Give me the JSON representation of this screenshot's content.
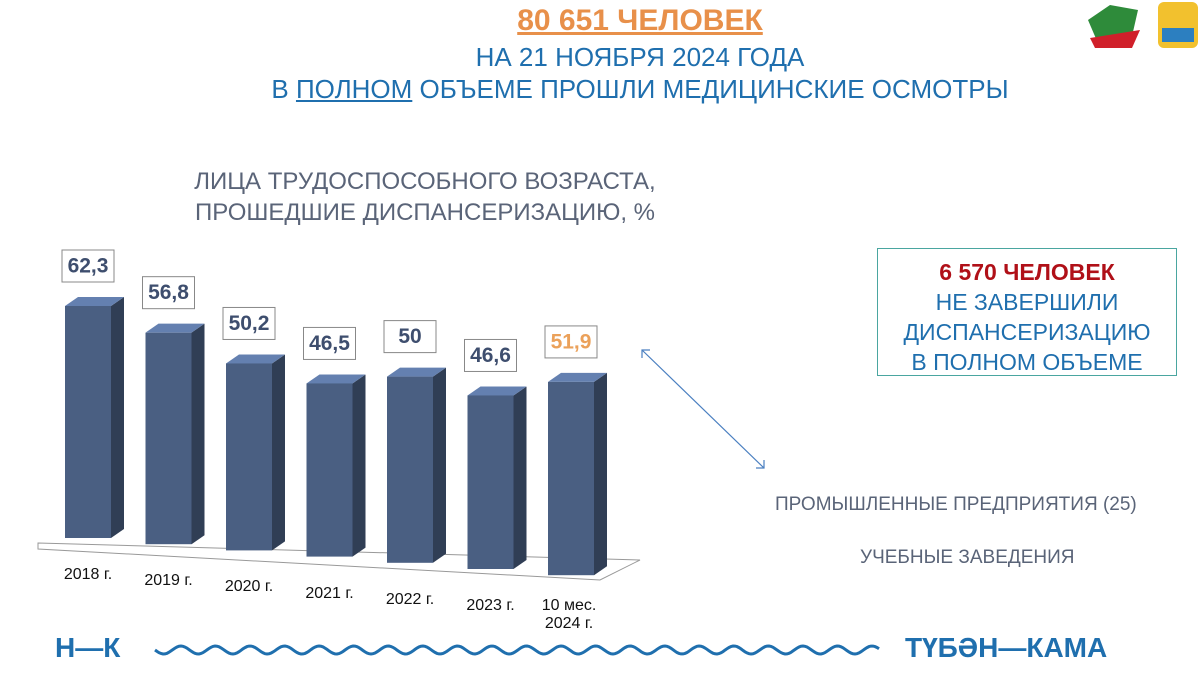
{
  "header": {
    "headline": "80 651 ЧЕЛОВЕК",
    "date_line": "НА 21 НОЯБРЯ 2024 ГОДА",
    "subtitle_parts": [
      "В ",
      "ПОЛНОМ",
      " ОБЪЕМЕ ПРОШЛИ МЕДИЦИНСКИЕ ОСМОТРЫ"
    ]
  },
  "chart_data": {
    "type": "bar",
    "title": [
      "ЛИЦА ТРУДОСПОСОБНОГО ВОЗРАСТА,",
      "ПРОШЕДШИЕ ДИСПАНСЕРИЗАЦИЮ, %"
    ],
    "categories": [
      "2018 г.",
      "2019 г.",
      "2020 г.",
      "2021 г.",
      "2022 г.",
      "2023 г.",
      "10 мес. 2024 г."
    ],
    "values": [
      62.3,
      56.8,
      50.2,
      46.5,
      50,
      46.6,
      51.9
    ],
    "value_labels": [
      "62,3",
      "56,8",
      "50,2",
      "46,5",
      "50",
      "46,6",
      "51,9"
    ],
    "color": "#4a5f82"
  },
  "callout": {
    "headline": "6 570 ЧЕЛОВЕК",
    "lines": [
      "НЕ ЗАВЕРШИЛИ",
      "ДИСПАНСЕРИЗАЦИЮ",
      "В ПОЛНОМ ОБЪЕМЕ"
    ]
  },
  "groups": [
    "ПРОМЫШЛЕННЫЕ ПРЕДПРИЯТИЯ (25)",
    "УЧЕБНЫЕ ЗАВЕДЕНИЯ"
  ],
  "footer": {
    "left": "Н—К",
    "right": "ТҮБӘН—КАМА"
  }
}
